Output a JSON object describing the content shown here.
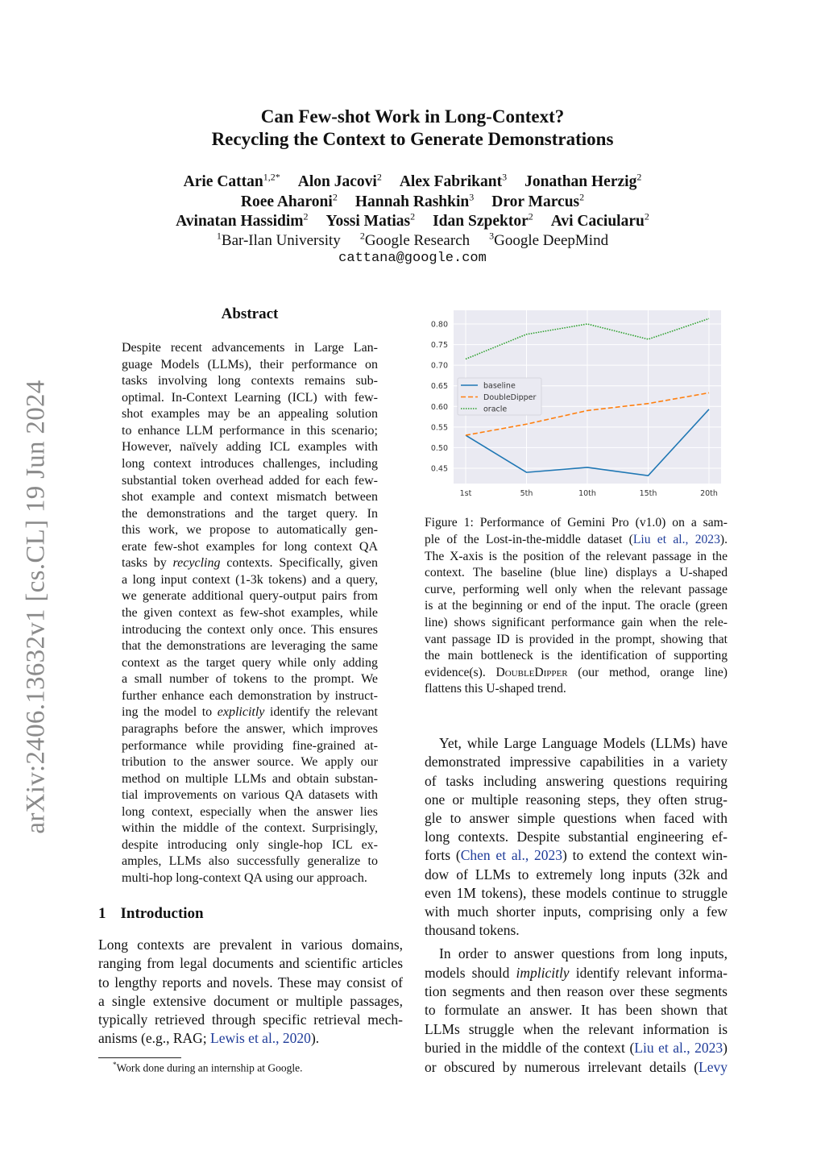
{
  "sidebar_stamp": "arXiv:2406.13632v1  [cs.CL]  19 Jun 2024",
  "title": [
    "Can Few-shot Work in Long-Context?",
    "Recycling the Context to Generate Demonstrations"
  ],
  "authors": [
    [
      [
        "Arie Cattan",
        "1,2*"
      ],
      [
        "Alon Jacovi",
        "2"
      ],
      [
        "Alex Fabrikant",
        "3"
      ],
      [
        "Jonathan Herzig",
        "2"
      ]
    ],
    [
      [
        "Roee Aharoni",
        "2"
      ],
      [
        "Hannah Rashkin",
        "3"
      ],
      [
        "Dror Marcus",
        "2"
      ]
    ],
    [
      [
        "Avinatan Hassidim",
        "2"
      ],
      [
        "Yossi Matias",
        "2"
      ],
      [
        "Idan Szpektor",
        "2"
      ],
      [
        "Avi Caciularu",
        "2"
      ]
    ]
  ],
  "affiliations": [
    [
      "1",
      "Bar-Ilan University"
    ],
    [
      "2",
      "Google Research"
    ],
    [
      "3",
      "Google DeepMind"
    ]
  ],
  "email": "cattana@google.com",
  "abstract": {
    "heading": "Abstract",
    "lines": [
      "Despite recent advancements in Large Lan-",
      "guage Models (LLMs), their performance on",
      "tasks involving long contexts remains sub-",
      "optimal. In-Context Learning (ICL) with few-",
      "shot examples may be an appealing solution",
      "to enhance LLM performance in this scenario;",
      "However, naïvely adding ICL examples with",
      "long context introduces challenges, including",
      "substantial token overhead added for each few-",
      "shot example and context mismatch between",
      "the demonstrations and the target query.  In",
      "this work, we propose to automatically gen-",
      "erate few-shot examples for long context QA",
      [
        {
          "t": "tasks by "
        },
        {
          "t": "recycling",
          "s": "i"
        },
        {
          "t": " contexts. Specifically, given"
        }
      ],
      "a long input context (1-3k tokens) and a query,",
      "we generate additional query-output pairs from",
      "the given context as few-shot examples, while",
      "introducing the context only once. This ensures",
      "that the demonstrations are leveraging the same",
      "context as the target query while only adding",
      "a small number of tokens to the prompt.  We",
      "further enhance each demonstration by instruct-",
      [
        {
          "t": "ing the model to "
        },
        {
          "t": "explicitly",
          "s": "i"
        },
        {
          "t": " identify the relevant"
        }
      ],
      "paragraphs before the answer, which improves",
      "performance while providing fine-grained at-",
      "tribution to the answer source.  We apply our",
      "method on multiple LLMs and obtain substan-",
      "tial improvements on various QA datasets with",
      "long context, especially when the answer lies",
      "within the middle of the context. Surprisingly,",
      "despite introducing only single-hop ICL ex-",
      "amples, LLMs also successfully generalize to",
      "multi-hop long-context QA using our approach."
    ]
  },
  "intro": {
    "number": "1",
    "heading": "Introduction",
    "lines": [
      "Long contexts are prevalent in various domains,",
      "ranging from legal documents and scientific articles",
      "to lengthy reports and novels. These may consist of",
      "a single extensive document or multiple passages,",
      "typically retrieved through specific retrieval mech-",
      [
        {
          "t": "anisms (e.g., RAG; "
        },
        {
          "t": "Lewis et al., 2020",
          "s": "link"
        },
        {
          "t": ")."
        }
      ]
    ]
  },
  "footnote": {
    "mark": "*",
    "text": "Work done during an internship at Google."
  },
  "figure_caption": [
    "Figure 1: Performance of Gemini Pro (v1.0) on a sam-",
    [
      {
        "t": "ple of the Lost-in-the-middle dataset ("
      },
      {
        "t": "Liu et al., 2023",
        "s": "link"
      },
      {
        "t": ")."
      }
    ],
    "The X-axis is the position of the relevant passage in the",
    "context.  The baseline (blue line) displays a U-shaped",
    "curve, performing well only when the relevant passage",
    "is at the beginning or end of the input. The oracle (green",
    "line) shows significant performance gain when the rele-",
    "vant passage ID is provided in the prompt, showing that",
    "the main bottleneck is the identification of supporting",
    [
      {
        "t": "evidence(s). "
      },
      {
        "t": "DoubleDipper",
        "s": "sc"
      },
      {
        "t": " (our method, orange line)"
      }
    ],
    "flattens this U-shaped trend."
  ],
  "right_body": {
    "para1": [
      "Yet, while Large Language Models (LLMs) have",
      "demonstrated impressive capabilities in a variety",
      "of tasks including answering questions requiring",
      "one or multiple reasoning steps, they often strug-",
      "gle to answer simple questions when faced with",
      "long contexts.  Despite substantial engineering ef-",
      [
        {
          "t": "forts ("
        },
        {
          "t": "Chen et al., 2023",
          "s": "link"
        },
        {
          "t": ") to extend the context win-"
        }
      ],
      "dow of LLMs to extremely long inputs (32k and",
      "even 1M tokens), these models continue to struggle",
      "with much shorter inputs, comprising only a few",
      "thousand tokens."
    ],
    "para2": [
      "In order to answer questions from long inputs,",
      [
        {
          "t": "models should "
        },
        {
          "t": "implicitly",
          "s": "i"
        },
        {
          "t": " identify relevant informa-"
        }
      ],
      "tion segments and then reason over these segments",
      "to formulate an answer.  It has been shown that",
      "LLMs struggle when the relevant information is",
      [
        {
          "t": "buried in the middle of the context ("
        },
        {
          "t": "Liu et al., 2023",
          "s": "link"
        },
        {
          "t": ")"
        }
      ],
      [
        {
          "t": "or obscured by numerous irrelevant details ("
        },
        {
          "t": "Levy",
          "s": "link"
        }
      ]
    ]
  },
  "chart_data": {
    "type": "line",
    "categories": [
      "1st",
      "5th",
      "10th",
      "15th",
      "20th"
    ],
    "ylim": [
      0.42,
      0.82
    ],
    "yticks": [
      "0.45",
      "0.50",
      "0.55",
      "0.60",
      "0.65",
      "0.70",
      "0.75",
      "0.80"
    ],
    "grid": true,
    "legend_placement": "center-left",
    "series": [
      {
        "name": "baseline",
        "values": [
          0.53,
          0.44,
          0.452,
          0.432,
          0.593
        ],
        "color": "#1f77b4",
        "style": "solid"
      },
      {
        "name": "DoubleDipper",
        "values": [
          0.53,
          0.557,
          0.59,
          0.607,
          0.633
        ],
        "color": "#ff7f0e",
        "style": "dashed"
      },
      {
        "name": "oracle",
        "values": [
          0.715,
          0.775,
          0.8,
          0.763,
          0.813
        ],
        "color": "#2ca02c",
        "style": "dotted"
      }
    ],
    "background": "#eaeaf2"
  },
  "colors": {
    "link": "#1f3c99",
    "stamp": "#8a8a8a"
  }
}
